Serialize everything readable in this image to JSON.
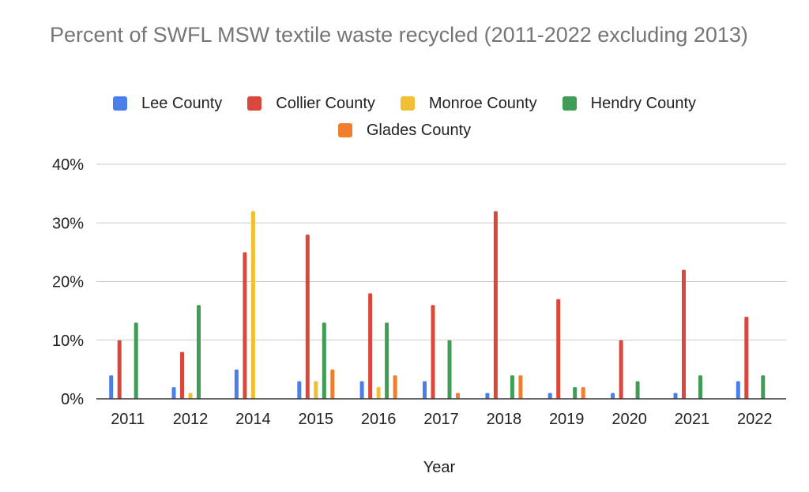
{
  "chart_data": {
    "type": "bar",
    "title": "Percent of SWFL MSW textile waste recycled (2011-2022 excluding 2013)",
    "xlabel": "Year",
    "ylabel": "",
    "categories": [
      "2011",
      "2012",
      "2014",
      "2015",
      "2016",
      "2017",
      "2018",
      "2019",
      "2020",
      "2021",
      "2022"
    ],
    "ylim": [
      0,
      40
    ],
    "yticks": [
      "0%",
      "10%",
      "20%",
      "30%",
      "40%"
    ],
    "grid": true,
    "legend_position": "top",
    "series": [
      {
        "name": "Lee County",
        "color": "#4a7ee8",
        "values": [
          4,
          2,
          5,
          3,
          3,
          3,
          1,
          1,
          1,
          1,
          3
        ]
      },
      {
        "name": "Collier County",
        "color": "#d9483b",
        "values": [
          10,
          8,
          25,
          28,
          18,
          16,
          32,
          17,
          10,
          22,
          14
        ]
      },
      {
        "name": "Monroe County",
        "color": "#f1bf32",
        "values": [
          0,
          1,
          32,
          3,
          2,
          0,
          0,
          0,
          0,
          0,
          0
        ]
      },
      {
        "name": "Hendry County",
        "color": "#3f9d55",
        "values": [
          13,
          16,
          0,
          13,
          13,
          10,
          4,
          2,
          3,
          4,
          4
        ]
      },
      {
        "name": "Glades County",
        "color": "#f07e2e",
        "values": [
          0,
          0,
          0,
          5,
          4,
          1,
          4,
          2,
          0,
          0,
          0
        ]
      }
    ]
  }
}
